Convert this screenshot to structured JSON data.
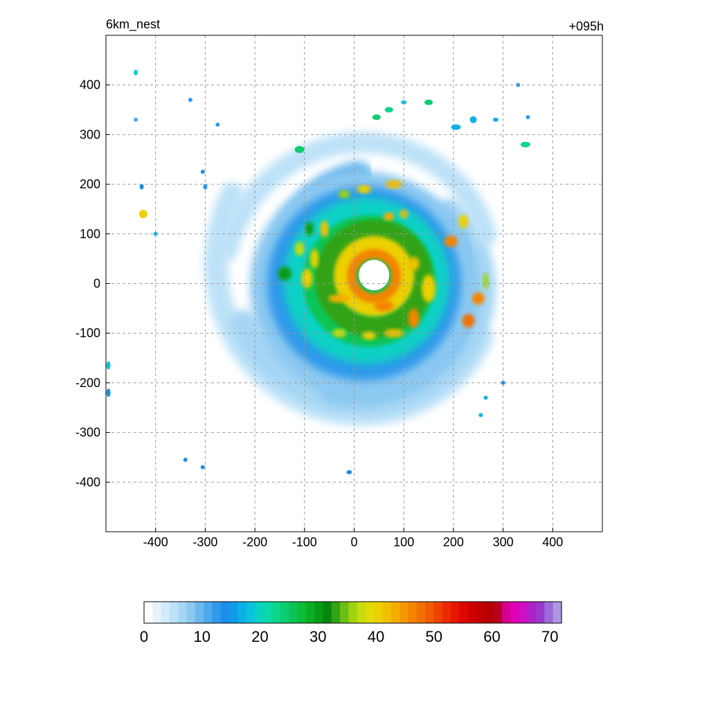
{
  "chart_data": {
    "type": "heatmap",
    "title_left": "6km_nest",
    "title_right": "+095h",
    "xlabel": "",
    "ylabel": "",
    "xlim": [
      -500,
      500
    ],
    "ylim": [
      -500,
      500
    ],
    "x_ticks": [
      -400,
      -300,
      -200,
      -100,
      0,
      100,
      200,
      300,
      400
    ],
    "y_ticks": [
      400,
      300,
      200,
      100,
      0,
      -100,
      -200,
      -300,
      -400
    ],
    "x_tick_labels": [
      "-400",
      "-300",
      "-200",
      "-100",
      "0",
      "100",
      "200",
      "300",
      "400"
    ],
    "y_tick_labels": [
      "400",
      "300",
      "200",
      "100",
      "0",
      "-100",
      "-200",
      "-300",
      "-400"
    ],
    "grid": true,
    "colorbar": {
      "range": [
        0,
        72
      ],
      "tick_values": [
        0,
        10,
        20,
        30,
        40,
        50,
        60,
        70
      ],
      "tick_labels": [
        "0",
        "10",
        "20",
        "30",
        "40",
        "50",
        "60",
        "70"
      ],
      "colors": [
        "#ffffff",
        "#e6f3fc",
        "#d1ebfb",
        "#bde2f8",
        "#a6d6f4",
        "#8cc9f1",
        "#6db9ee",
        "#4fa9ec",
        "#2f99ea",
        "#1a8ee8",
        "#0f9be8",
        "#0db0e6",
        "#0bc3dc",
        "#0ad1c4",
        "#0bd9a8",
        "#0cd58c",
        "#0ccd70",
        "#0cc455",
        "#0cbb3a",
        "#0aae22",
        "#089b16",
        "#06860f",
        "#33a316",
        "#6cbe14",
        "#a0d211",
        "#c7dc0c",
        "#dfdc06",
        "#ecd003",
        "#f1c000",
        "#f4ad00",
        "#f59800",
        "#f48400",
        "#f27000",
        "#f05a00",
        "#ee4200",
        "#ec2a00",
        "#e81600",
        "#de0800",
        "#d00000",
        "#c20000",
        "#b40000",
        "#b80020",
        "#d2008a",
        "#e000b8",
        "#cc10c4",
        "#b020c8",
        "#9a38cc",
        "#9a6bd8",
        "#b096e0"
      ]
    },
    "field": {
      "description_free": true,
      "eye_center": [
        40,
        15
      ],
      "eye_radius": 30,
      "max_value": 52
    }
  }
}
